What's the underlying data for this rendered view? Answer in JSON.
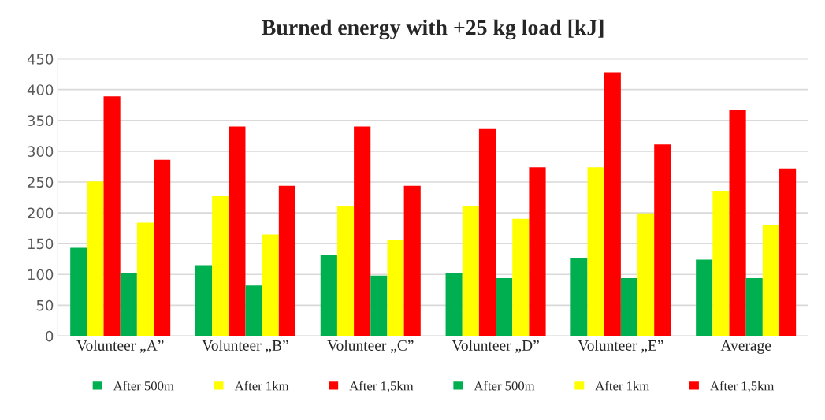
{
  "chart_data": {
    "type": "bar",
    "title": "Burned energy with +25 kg load [kJ]",
    "categories": [
      "Volunteer „A”",
      "Volunteer „B”",
      "Volunteer „C”",
      "Volunteer „D”",
      "Volunteer „E”",
      "Average"
    ],
    "series": [
      {
        "name": "After 500m",
        "color": "#00b050",
        "values": [
          143,
          115,
          131,
          102,
          127,
          124
        ]
      },
      {
        "name": "After 1km",
        "color": "#ffff00",
        "values": [
          251,
          227,
          211,
          211,
          274,
          235
        ]
      },
      {
        "name": "After 1,5km",
        "color": "#ff0000",
        "values": [
          389,
          340,
          340,
          336,
          427,
          367
        ]
      },
      {
        "name": "After 500m",
        "color": "#00b050",
        "values": [
          102,
          82,
          98,
          94,
          94,
          94
        ]
      },
      {
        "name": "After 1km",
        "color": "#ffff00",
        "values": [
          184,
          165,
          156,
          190,
          199,
          180
        ]
      },
      {
        "name": "After 1,5km",
        "color": "#ff0000",
        "values": [
          286,
          244,
          244,
          274,
          311,
          272
        ]
      }
    ],
    "ylim": [
      0,
      450
    ],
    "yticks": [
      0,
      50,
      100,
      150,
      200,
      250,
      300,
      350,
      400,
      450
    ],
    "grid": "y",
    "legend": "bottom"
  }
}
